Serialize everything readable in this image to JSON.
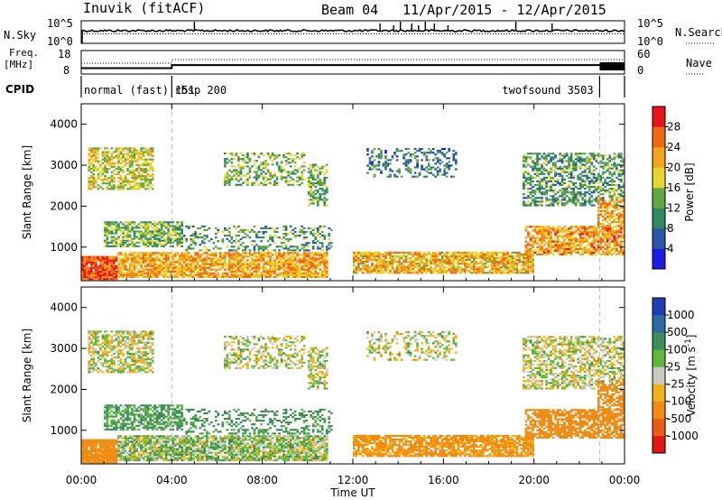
{
  "chart_data": {
    "type": "heatmap",
    "header": {
      "station": "Inuvik (fitACF)",
      "beam": "Beam 04",
      "dates": "11/Apr/2015 - 12/Apr/2015"
    },
    "top_panels": {
      "nsky_label": "N.Sky",
      "nsky_ticks": [
        "10^5",
        "10^0"
      ],
      "nsearch_label": "N.Search",
      "nsearch_ticks": [
        "10^5",
        "10^0"
      ],
      "freq_label": [
        "Freq.",
        "[MHz]"
      ],
      "freq_ticks": [
        "18",
        "8"
      ],
      "nave_label": "Nave",
      "nave_ticks": [
        "60",
        "0"
      ],
      "cpid_label": "CPID",
      "cpid_segments": [
        {
          "label": "normal (fast) 151",
          "start_h": 0,
          "end_h": 4.0
        },
        {
          "label": "rbsp 200",
          "start_h": 4.0,
          "end_h": 22.9
        },
        {
          "label": "twofsound 3503",
          "start_h": 22.9,
          "end_h": 24
        }
      ],
      "freq_steps": [
        {
          "start_h": 0,
          "end_h": 4.0,
          "mhz": 10.5
        },
        {
          "start_h": 4.0,
          "end_h": 24,
          "mhz": 11.8
        }
      ]
    },
    "x_axis": {
      "label": "Time UT",
      "ticks": [
        "00:00",
        "04:00",
        "08:00",
        "12:00",
        "16:00",
        "20:00",
        "00:00"
      ],
      "range_hours": [
        0,
        24
      ]
    },
    "y_axis": {
      "label": "Slant Range [km]",
      "ticks": [
        "1000",
        "2000",
        "3000",
        "4000"
      ],
      "range_km": [
        180,
        4500
      ]
    },
    "power_panel": {
      "colorbar_label": "Power [dB]",
      "colorbar_ticks": [
        "4",
        "8",
        "12",
        "16",
        "20",
        "24",
        "28"
      ],
      "colors": [
        "#1c1ce8",
        "#2a55a8",
        "#2f8a63",
        "#62a845",
        "#e6d52a",
        "#f4a51b",
        "#ef6a12",
        "#e8131b"
      ]
    },
    "velocity_panel": {
      "colorbar_label": "Velocity [m s^-1]",
      "colorbar_ticks": [
        "1000",
        "500",
        "100",
        "25",
        "-25",
        "-100",
        "-500",
        "-1000"
      ],
      "colors": [
        "#1c3fb3",
        "#2e6aa3",
        "#3b8d5b",
        "#5fb83a",
        "#c8c8c0",
        "#f1b318",
        "#ef8a12",
        "#ec5a15",
        "#e51414"
      ]
    },
    "echo_regions": [
      {
        "t0": 0.0,
        "t1": 1.6,
        "r0": 200,
        "r1": 750,
        "p": 27,
        "v": -200,
        "d": 0.95
      },
      {
        "t0": 1.6,
        "t1": 10.8,
        "r0": 250,
        "r1": 850,
        "p": 22,
        "v": 40,
        "d": 0.85
      },
      {
        "t0": 1.0,
        "t1": 4.5,
        "r0": 1000,
        "r1": 1600,
        "p": 14,
        "v": 120,
        "d": 0.7
      },
      {
        "t0": 0.3,
        "t1": 3.2,
        "r0": 2400,
        "r1": 3400,
        "p": 18,
        "v": 0,
        "d": 0.65
      },
      {
        "t0": 4.5,
        "t1": 11.0,
        "r0": 900,
        "r1": 1500,
        "p": 12,
        "v": 150,
        "d": 0.35
      },
      {
        "t0": 6.3,
        "t1": 9.8,
        "r0": 2500,
        "r1": 3300,
        "p": 14,
        "v": 0,
        "d": 0.45
      },
      {
        "t0": 10.0,
        "t1": 10.8,
        "r0": 2000,
        "r1": 3000,
        "p": 14,
        "v": 0,
        "d": 0.5
      },
      {
        "t0": 12.0,
        "t1": 20.0,
        "r0": 350,
        "r1": 850,
        "p": 21,
        "v": -150,
        "d": 0.8
      },
      {
        "t0": 12.6,
        "t1": 16.5,
        "r0": 2700,
        "r1": 3400,
        "p": 9,
        "v": 0,
        "d": 0.35
      },
      {
        "t0": 19.6,
        "t1": 24.0,
        "r0": 800,
        "r1": 1500,
        "p": 23,
        "v": -300,
        "d": 0.75
      },
      {
        "t0": 19.5,
        "t1": 24.0,
        "r0": 2000,
        "r1": 3300,
        "p": 12,
        "v": 0,
        "d": 0.55
      },
      {
        "t0": 22.8,
        "t1": 24.0,
        "r0": 1500,
        "r1": 2200,
        "p": 22,
        "v": -250,
        "d": 0.6
      }
    ]
  }
}
